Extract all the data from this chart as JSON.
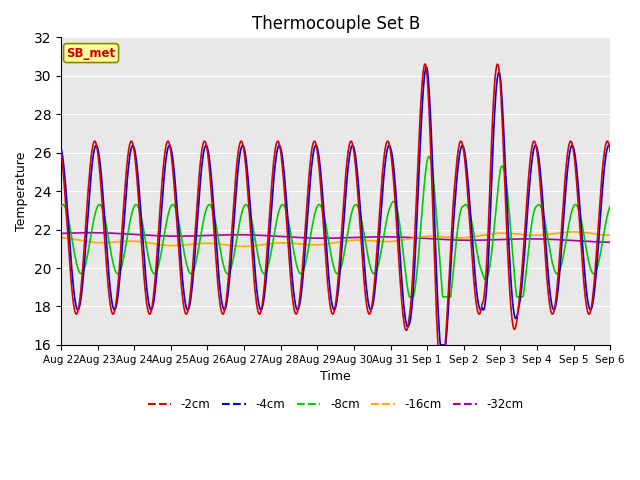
{
  "title": "Thermocouple Set B",
  "xlabel": "Time",
  "ylabel": "Temperature",
  "ylim": [
    16,
    32
  ],
  "bg_color": "#e8e8e8",
  "fig_color": "#ffffff",
  "lines": [
    {
      "label": "-2cm",
      "color": "#dd0000",
      "linestyle": "-",
      "lw": 1.2,
      "zorder": 5
    },
    {
      "label": "-4cm",
      "color": "#0000dd",
      "linestyle": "-",
      "lw": 1.2,
      "zorder": 4
    },
    {
      "label": "-8cm",
      "color": "#00cc00",
      "linestyle": "-",
      "lw": 1.2,
      "zorder": 3
    },
    {
      "label": "-16cm",
      "color": "#ffaa00",
      "linestyle": "-",
      "lw": 1.2,
      "zorder": 2
    },
    {
      "label": "-32cm",
      "color": "#aa00aa",
      "linestyle": "-",
      "lw": 1.2,
      "zorder": 1
    }
  ],
  "annotation_text": "SB_met",
  "annotation_color": "#cc0000",
  "annotation_bg": "#ffff99",
  "n_days": 15,
  "samples_per_day": 96,
  "yticks": [
    16,
    18,
    20,
    22,
    24,
    26,
    28,
    30,
    32
  ],
  "xtick_labels": [
    "Aug 22",
    "Aug 23",
    "Aug 24",
    "Aug 25",
    "Aug 26",
    "Aug 27",
    "Aug 28",
    "Aug 29",
    "Aug 30",
    "Aug 31",
    "Sep 1",
    "Sep 2",
    "Sep 3",
    "Sep 4",
    "Sep 5",
    "Sep 6"
  ],
  "legend_ncol": 5
}
